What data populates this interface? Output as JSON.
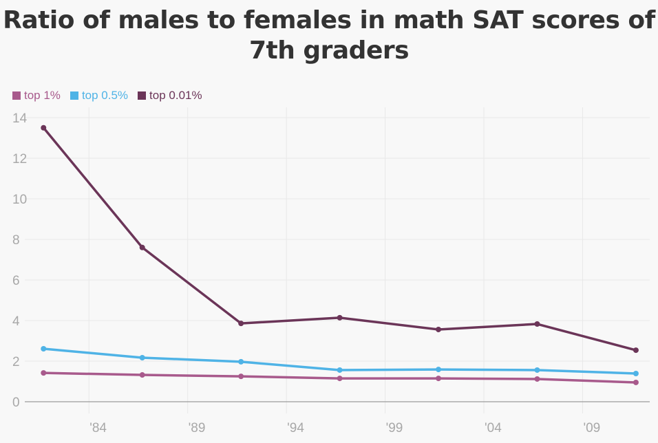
{
  "chart_data": {
    "type": "line",
    "title": "Ratio of males to females in math SAT scores of 7th graders",
    "xlabel": "",
    "ylabel": "",
    "ylim": [
      0,
      14
    ],
    "xlim": [
      1980.75,
      2012.4
    ],
    "grid": true,
    "legend_position": "top-left",
    "yticks": [
      0,
      2,
      4,
      6,
      8,
      10,
      12,
      14
    ],
    "xticks": [
      {
        "value": 1984,
        "label": "'84"
      },
      {
        "value": 1989,
        "label": "'89"
      },
      {
        "value": 1994,
        "label": "'94"
      },
      {
        "value": 1999,
        "label": "'99"
      },
      {
        "value": 2004,
        "label": "'04"
      },
      {
        "value": 2009,
        "label": "'09"
      }
    ],
    "x": [
      1981.7,
      1986.7,
      1991.7,
      1996.7,
      2001.7,
      2006.7,
      2011.7
    ],
    "series": [
      {
        "name": "top 1%",
        "color": "#a85a8c",
        "values": [
          1.42,
          1.32,
          1.25,
          1.15,
          1.15,
          1.12,
          0.95
        ]
      },
      {
        "name": "top 0.5%",
        "color": "#4fb3e6",
        "values": [
          2.61,
          2.17,
          1.97,
          1.56,
          1.59,
          1.56,
          1.39
        ]
      },
      {
        "name": "top 0.01%",
        "color": "#6b3558",
        "values": [
          13.5,
          7.6,
          3.86,
          4.14,
          3.56,
          3.83,
          2.54
        ]
      }
    ]
  }
}
